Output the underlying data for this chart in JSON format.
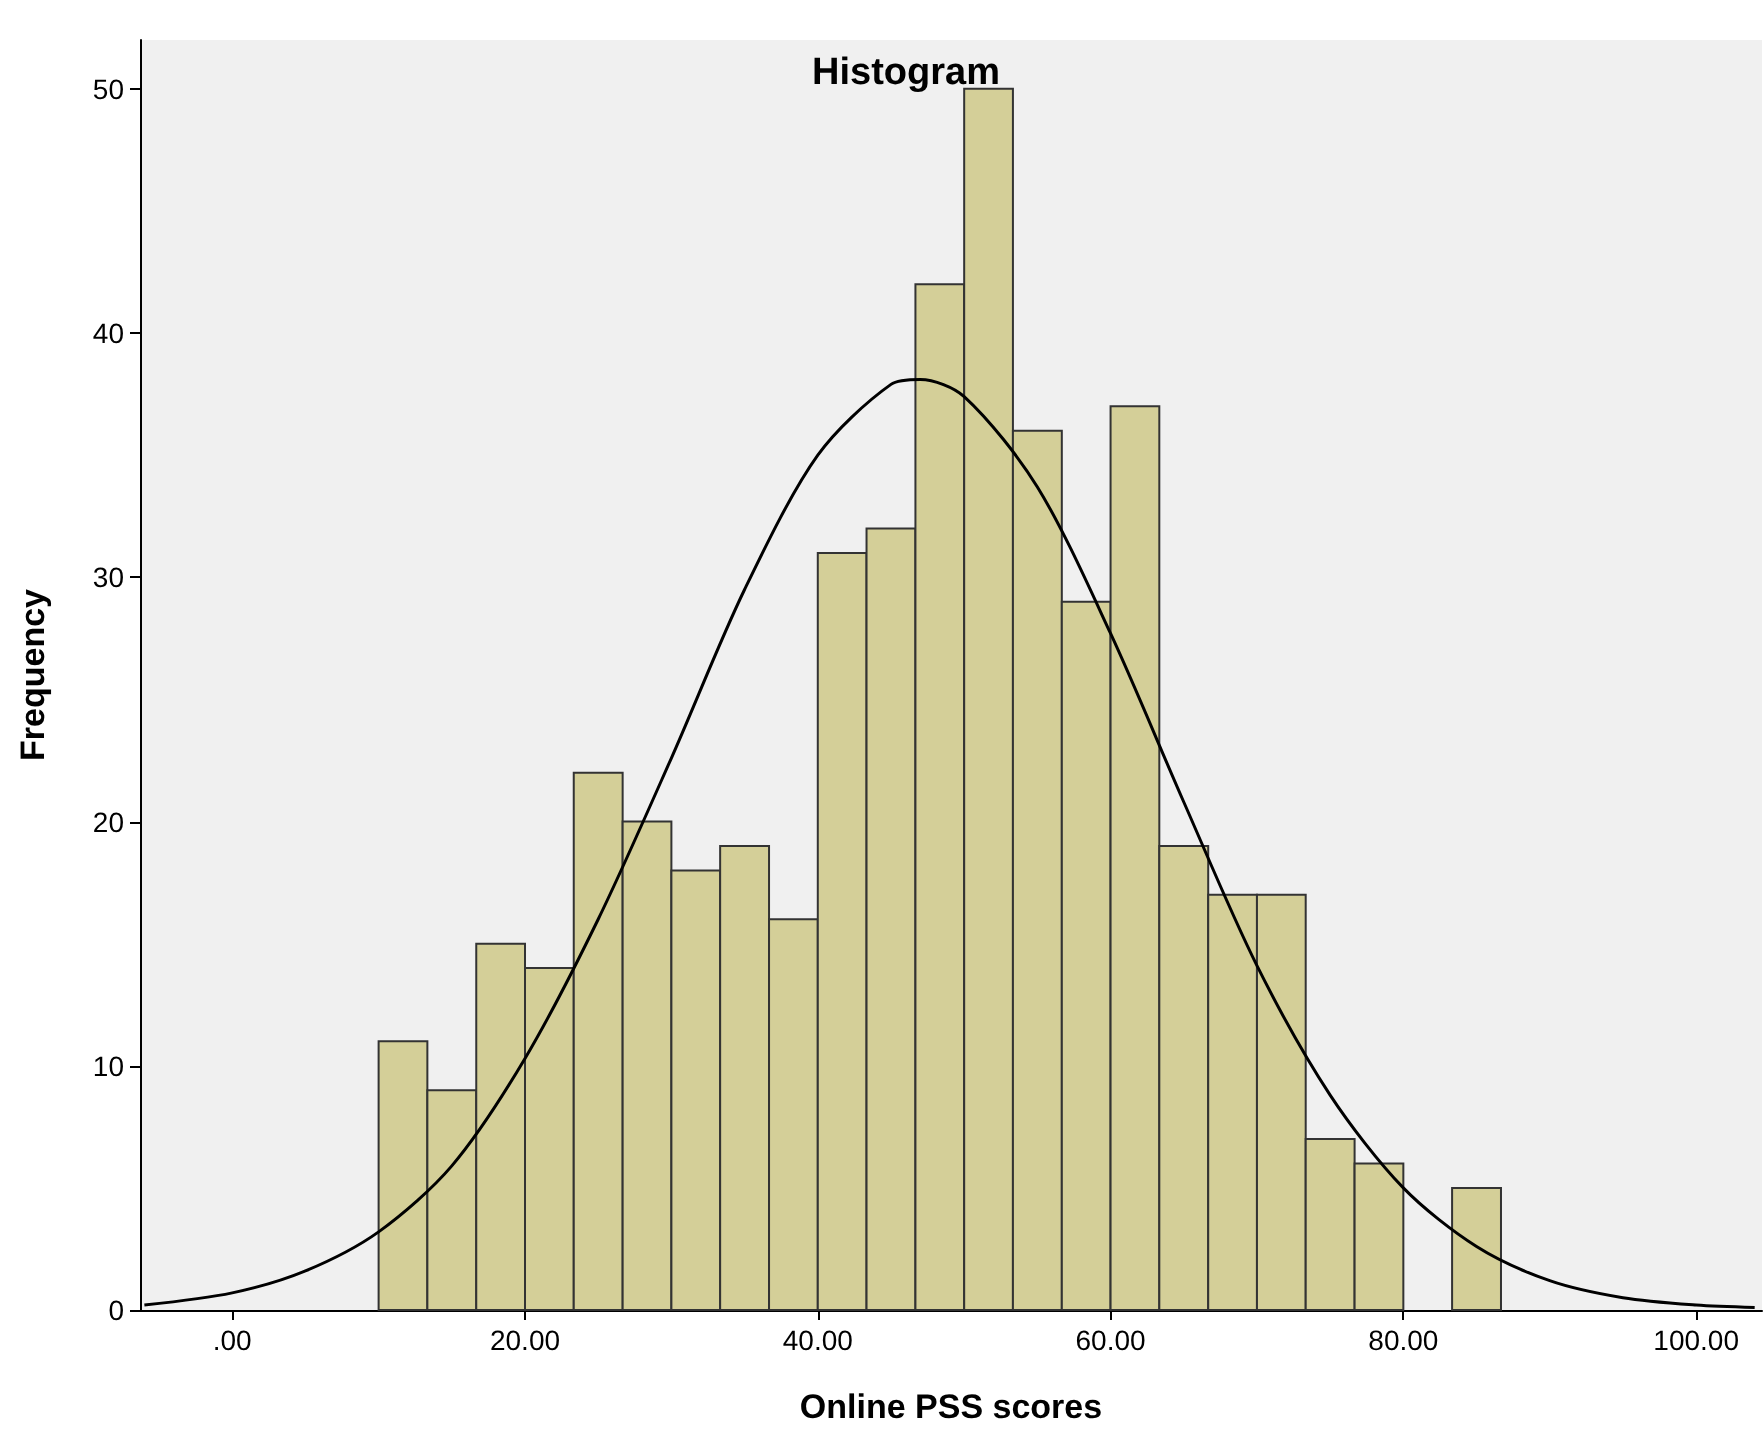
{
  "chart_data": {
    "type": "histogram",
    "title": "Histogram",
    "xlabel": "Online PSS scores",
    "ylabel": "Frequency",
    "xlim": [
      -6.3,
      104.5
    ],
    "ylim": [
      0,
      52
    ],
    "xticks": [
      {
        "value": 0,
        "label": ".00"
      },
      {
        "value": 20,
        "label": "20.00"
      },
      {
        "value": 40,
        "label": "40.00"
      },
      {
        "value": 60,
        "label": "60.00"
      },
      {
        "value": 80,
        "label": "80.00"
      },
      {
        "value": 100,
        "label": "100.00"
      }
    ],
    "yticks": [
      0,
      10,
      20,
      30,
      40,
      50
    ],
    "grid": false,
    "marker": "none",
    "line_style": "solid",
    "series": [
      {
        "color": "#d4cf98",
        "bins": [
          10,
          13.33,
          16.67,
          20,
          23.33,
          26.67,
          30,
          33.33,
          36.67,
          40,
          43.33,
          46.67,
          50,
          53.33,
          56.67,
          60,
          63.33,
          66.67,
          70,
          73.33,
          76.67,
          80,
          83.33,
          86.67
        ],
        "values": [
          11,
          9,
          15,
          14,
          22,
          20,
          18,
          19,
          16,
          31,
          32,
          42,
          50,
          36,
          29,
          37,
          19,
          17,
          17,
          7,
          6,
          0,
          5
        ]
      },
      {
        "type": "line",
        "color": "#000000",
        "x": [
          -6,
          0,
          5,
          10,
          15,
          20,
          25,
          30,
          35,
          40,
          45,
          47,
          50,
          55,
          60,
          65,
          70,
          75,
          80,
          85,
          90,
          95,
          100,
          104
        ],
        "values": [
          0.2,
          0.7,
          1.6,
          3.2,
          5.9,
          10.3,
          16.0,
          22.6,
          29.5,
          35.0,
          37.9,
          38.1,
          37.4,
          33.7,
          27.7,
          20.8,
          14.1,
          8.8,
          5.0,
          2.6,
          1.2,
          0.5,
          0.2,
          0.1
        ]
      }
    ]
  }
}
